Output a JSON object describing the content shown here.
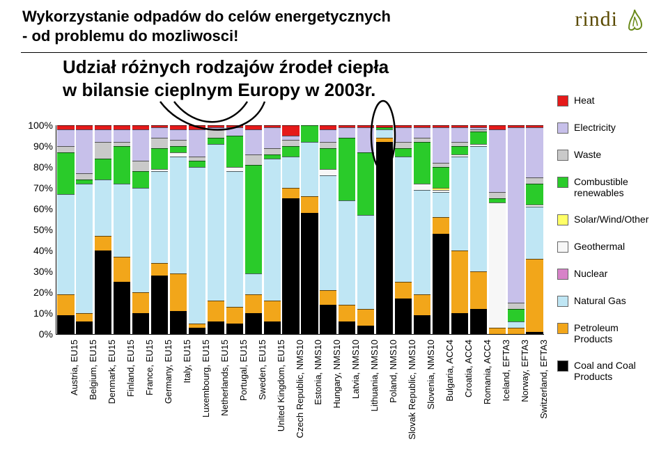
{
  "title_line1": "Wykorzystanie odpadów do celów energetycznych",
  "title_line2": "- od problemu do mozliwosci!",
  "subtitle_line1": "Udział różnych rodzajów źrodeł ciepła",
  "subtitle_line2": "w bilansie cieplnym Europy w 2003r.",
  "logo_text": "rindi",
  "logo_accent_color": "#6a8a1a",
  "logo_text_color": "#5a4a00",
  "chart": {
    "type": "stacked_bar_percent",
    "background_color": "#ffffff",
    "ylim": [
      0,
      100
    ],
    "ytick_step": 10,
    "ytick_suffix": "%",
    "axis_fontsize": 14,
    "xlabel_fontsize": 13,
    "xlabel_rotation": -90,
    "series_order": [
      "coal",
      "petroleum",
      "gas",
      "nuclear",
      "geothermal",
      "solar",
      "renewables",
      "waste",
      "electricity",
      "heat"
    ],
    "colors": {
      "coal": "#000000",
      "petroleum": "#f2a61a",
      "gas": "#bfe6f4",
      "nuclear": "#d782c8",
      "geothermal": "#f7f7f7",
      "solar": "#ffff66",
      "renewables": "#2acb2a",
      "waste": "#c9c9c9",
      "electricity": "#c7c0ea",
      "heat": "#e51a1a"
    },
    "categories": [
      "Austria, EU15",
      "Belgium, EU15",
      "Denmark, EU15",
      "Finland, EU15",
      "France, EU15",
      "Germany, EU15",
      "Italy, EU15",
      "Luxembourg, EU15",
      "Netherlands, EU15",
      "Portugal, EU15",
      "Sweden, EU15",
      "United Kingdom, EU15",
      "Czech Republic, NMS10",
      "Estonia, NMS10",
      "Hungary, NMS10",
      "Latvia, NMS10",
      "Lithuania, NMS10",
      "Poland, NMS10",
      "Slovak Republic, NMS10",
      "Slovenia, NMS10",
      "Bulgaria, ACC4",
      "Croatia, ACC4",
      "Romania, ACC4",
      "Iceland, EFTA3",
      "Norway, EFTA3",
      "Switzerland, EFTA3"
    ],
    "values": {
      "coal": [
        9,
        6,
        40,
        25,
        10,
        28,
        11,
        3,
        6,
        5,
        10,
        6,
        65,
        58,
        14,
        6,
        4,
        92,
        17,
        9,
        48,
        10,
        12,
        0,
        0,
        1
      ],
      "petroleum": [
        10,
        4,
        7,
        12,
        10,
        6,
        18,
        2,
        10,
        8,
        9,
        10,
        5,
        8,
        7,
        8,
        8,
        2,
        8,
        10,
        8,
        30,
        18,
        3,
        3,
        35
      ],
      "gas": [
        48,
        62,
        27,
        35,
        50,
        44,
        56,
        75,
        75,
        65,
        10,
        68,
        15,
        26,
        55,
        50,
        45,
        4,
        60,
        50,
        12,
        45,
        60,
        0,
        3,
        25
      ],
      "nuclear": [
        0,
        0,
        0,
        0,
        0,
        0,
        0,
        0,
        0,
        0,
        0,
        0,
        0,
        0,
        0,
        0,
        0,
        0,
        0,
        0,
        0,
        0,
        0,
        0,
        0,
        0
      ],
      "geothermal": [
        0,
        0,
        0,
        0,
        0,
        1,
        2,
        0,
        0,
        2,
        0,
        0,
        0,
        0,
        3,
        0,
        0,
        0,
        0,
        3,
        1,
        1,
        1,
        60,
        0,
        1
      ],
      "solar": [
        0,
        0,
        0,
        0,
        0,
        0,
        0,
        0,
        0,
        0,
        0,
        0,
        0,
        0,
        0,
        0,
        0,
        0,
        0,
        0,
        1,
        0,
        0,
        0,
        0,
        0
      ],
      "renewables": [
        20,
        2,
        10,
        18,
        8,
        10,
        3,
        3,
        3,
        15,
        52,
        2,
        5,
        8,
        10,
        30,
        30,
        1,
        4,
        20,
        10,
        4,
        6,
        2,
        6,
        10
      ],
      "waste": [
        3,
        3,
        8,
        2,
        5,
        5,
        3,
        2,
        4,
        0,
        5,
        3,
        3,
        0,
        3,
        0,
        0,
        0,
        3,
        2,
        2,
        2,
        1,
        3,
        3,
        3
      ],
      "electricity": [
        8,
        21,
        6,
        6,
        15,
        5,
        5,
        13,
        1,
        4,
        12,
        10,
        2,
        0,
        6,
        5,
        12,
        0,
        7,
        5,
        17,
        7,
        1,
        30,
        84,
        24
      ],
      "heat": [
        2,
        2,
        2,
        2,
        2,
        1,
        2,
        2,
        1,
        1,
        2,
        1,
        5,
        0,
        2,
        1,
        1,
        1,
        1,
        1,
        1,
        1,
        1,
        2,
        1,
        1
      ]
    }
  },
  "legend": [
    {
      "key": "heat",
      "label": "Heat"
    },
    {
      "key": "electricity",
      "label": "Electricity"
    },
    {
      "key": "waste",
      "label": "Waste"
    },
    {
      "key": "renewables",
      "label": "Combustible renewables"
    },
    {
      "key": "solar",
      "label": "Solar/Wind/Other"
    },
    {
      "key": "geothermal",
      "label": "Geothermal"
    },
    {
      "key": "nuclear",
      "label": "Nuclear"
    },
    {
      "key": "gas",
      "label": "Natural Gas"
    },
    {
      "key": "petroleum",
      "label": "Petroleum Products"
    },
    {
      "key": "coal",
      "label": "Coal and Coal Products"
    }
  ]
}
